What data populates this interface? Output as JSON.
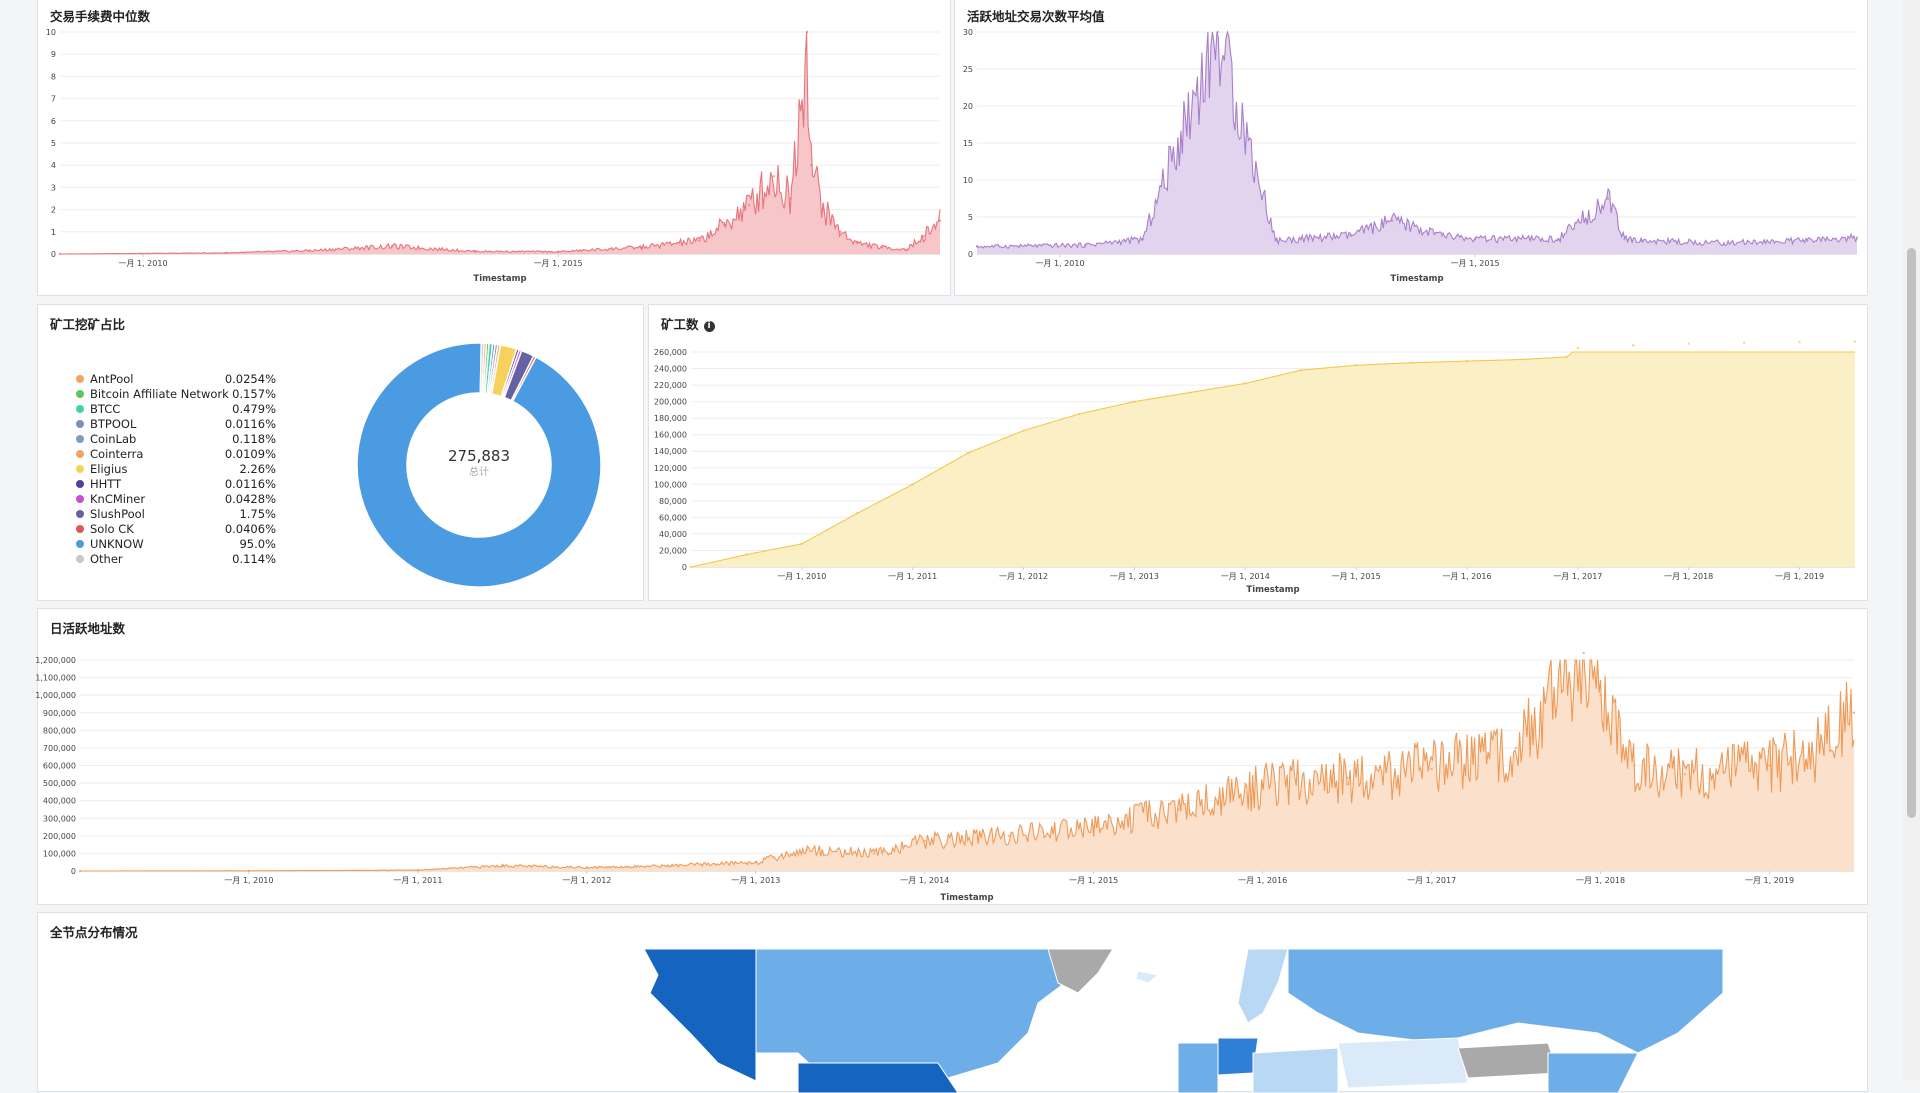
{
  "colors": {
    "fee": "#e8747c",
    "fee_fill": "#f7c6c9",
    "active_tx": "#a97fc9",
    "active_tx_fill": "#e2d4ee",
    "miners": "#f2c94c",
    "miners_fill": "#fbefc5",
    "daily": "#ef9a57",
    "daily_fill": "#fbe1cc"
  },
  "panels": {
    "fee": {
      "title": "交易手续费中位数",
      "xlabel": "Timestamp"
    },
    "active_tx": {
      "title": "活跃地址交易次数平均值",
      "xlabel": "Timestamp"
    },
    "pool": {
      "title": "矿工挖矿占比",
      "center_value": "275,883",
      "center_label": "总计"
    },
    "miners": {
      "title": "矿工数",
      "info_icon": "info-icon",
      "xlabel": "Timestamp"
    },
    "daily": {
      "title": "日活跃地址数",
      "xlabel": "Timestamp"
    },
    "nodes": {
      "title": "全节点分布情况"
    }
  },
  "chart_data": [
    {
      "id": "fee",
      "type": "area",
      "title": "交易手续费中位数",
      "xlabel": "Timestamp",
      "yticks": [
        "0",
        "1",
        "2",
        "3",
        "4",
        "5",
        "6",
        "7",
        "8",
        "9",
        "10"
      ],
      "ylim": [
        0,
        10
      ],
      "xticks": [
        {
          "label": "一月 1, 2010",
          "value": 2010.0
        },
        {
          "label": "一月 1, 2015",
          "value": 2015.0
        }
      ],
      "xlim": [
        2009.0,
        2019.6
      ],
      "x": [
        2009.0,
        2011.0,
        2012.0,
        2013.0,
        2014.0,
        2015.0,
        2016.0,
        2016.7,
        2017.0,
        2017.3,
        2017.6,
        2017.8,
        2018.0,
        2018.05,
        2018.2,
        2018.4,
        2018.6,
        2018.9,
        2019.2,
        2019.4,
        2019.6
      ],
      "values": [
        0,
        0.05,
        0.15,
        0.35,
        0.12,
        0.1,
        0.3,
        0.6,
        1.3,
        2.2,
        3.5,
        2.5,
        10.0,
        4.0,
        2.0,
        1.0,
        0.5,
        0.3,
        0.2,
        0.8,
        1.5
      ]
    },
    {
      "id": "active_tx",
      "type": "area",
      "title": "活跃地址交易次数平均值",
      "xlabel": "Timestamp",
      "yticks": [
        "0",
        "5",
        "10",
        "15",
        "20",
        "25",
        "30"
      ],
      "ylim": [
        0,
        30
      ],
      "xticks": [
        {
          "label": "一月 1, 2010",
          "value": 2010.0
        },
        {
          "label": "一月 1, 2015",
          "value": 2015.0
        }
      ],
      "xlim": [
        2009.0,
        2019.6
      ],
      "x": [
        2009.0,
        2010.3,
        2011.0,
        2011.9,
        2012.6,
        2013.5,
        2014.0,
        2014.6,
        2015.0,
        2016.0,
        2016.6,
        2016.8,
        2017.0,
        2018.0,
        2019.0,
        2019.6
      ],
      "values": [
        1,
        1.2,
        2,
        30,
        1.8,
        2.5,
        4.5,
        2.5,
        2,
        2,
        7.5,
        2,
        1.8,
        1.5,
        1.8,
        2.2
      ]
    },
    {
      "id": "miners",
      "type": "area",
      "title": "矿工数",
      "xlabel": "Timestamp",
      "yticks": [
        "0",
        "20,000",
        "40,000",
        "60,000",
        "80,000",
        "100,000",
        "120,000",
        "140,000",
        "160,000",
        "180,000",
        "200,000",
        "220,000",
        "240,000",
        "260,000"
      ],
      "ylim": [
        0,
        260000
      ],
      "xticks": [
        {
          "label": "一月 1, 2010",
          "value": 2010.0
        },
        {
          "label": "一月 1, 2011",
          "value": 2011.0
        },
        {
          "label": "一月 1, 2012",
          "value": 2012.0
        },
        {
          "label": "一月 1, 2013",
          "value": 2013.0
        },
        {
          "label": "一月 1, 2014",
          "value": 2014.0
        },
        {
          "label": "一月 1, 2015",
          "value": 2015.0
        },
        {
          "label": "一月 1, 2016",
          "value": 2016.0
        },
        {
          "label": "一月 1, 2017",
          "value": 2017.0
        },
        {
          "label": "一月 1, 2018",
          "value": 2018.0
        },
        {
          "label": "一月 1, 2019",
          "value": 2019.0
        }
      ],
      "xlim": [
        2009.0,
        2019.5
      ],
      "x": [
        2009.0,
        2009.5,
        2010.0,
        2010.5,
        2011.0,
        2011.5,
        2012.0,
        2012.5,
        2013.0,
        2013.5,
        2014.0,
        2014.5,
        2015.0,
        2015.5,
        2016.0,
        2016.5,
        2016.9,
        2017.0,
        2017.5,
        2018.0,
        2018.5,
        2019.0,
        2019.5
      ],
      "values": [
        0,
        15000,
        28000,
        65000,
        100000,
        138000,
        165000,
        185000,
        200000,
        211000,
        222000,
        238000,
        244000,
        247000,
        249000,
        251000,
        254000,
        265000,
        268000,
        270000,
        271000,
        272000,
        272500
      ]
    },
    {
      "id": "daily",
      "type": "area",
      "title": "日活跃地址数",
      "xlabel": "Timestamp",
      "yticks": [
        "0",
        "100,000",
        "200,000",
        "300,000",
        "400,000",
        "500,000",
        "600,000",
        "700,000",
        "800,000",
        "900,000",
        "1,000,000",
        "1,100,000",
        "1,200,000"
      ],
      "ylim": [
        0,
        1200000
      ],
      "xticks": [
        {
          "label": "一月 1, 2010",
          "value": 2010.0
        },
        {
          "label": "一月 1, 2011",
          "value": 2011.0
        },
        {
          "label": "一月 1, 2012",
          "value": 2012.0
        },
        {
          "label": "一月 1, 2013",
          "value": 2013.0
        },
        {
          "label": "一月 1, 2014",
          "value": 2014.0
        },
        {
          "label": "一月 1, 2015",
          "value": 2015.0
        },
        {
          "label": "一月 1, 2016",
          "value": 2016.0
        },
        {
          "label": "一月 1, 2017",
          "value": 2017.0
        },
        {
          "label": "一月 1, 2018",
          "value": 2018.0
        },
        {
          "label": "一月 1, 2019",
          "value": 2019.0
        }
      ],
      "xlim": [
        2009.0,
        2019.5
      ],
      "x": [
        2009.0,
        2010.0,
        2011.0,
        2011.5,
        2012.0,
        2012.5,
        2013.0,
        2013.3,
        2013.7,
        2014.0,
        2014.5,
        2015.0,
        2015.5,
        2016.0,
        2016.5,
        2017.0,
        2017.5,
        2017.9,
        2018.0,
        2018.2,
        2018.5,
        2019.0,
        2019.3,
        2019.5
      ],
      "values": [
        0,
        1000,
        5000,
        30000,
        20000,
        30000,
        50000,
        120000,
        100000,
        170000,
        200000,
        250000,
        350000,
        480000,
        530000,
        580000,
        700000,
        1240000,
        1000000,
        600000,
        550000,
        600000,
        700000,
        900000
      ]
    },
    {
      "id": "pool",
      "type": "pie",
      "title": "矿工挖矿占比",
      "labels": [
        "AntPool",
        "Bitcoin Affiliate Network",
        "BTCC",
        "BTPOOL",
        "CoinLab",
        "Cointerra",
        "Eligius",
        "HHTT",
        "KnCMiner",
        "SlushPool",
        "Solo CK",
        "UNKNOW",
        "Other"
      ],
      "value_labels": [
        "0.0254%",
        "0.157%",
        "0.479%",
        "0.0116%",
        "0.118%",
        "0.0109%",
        "2.26%",
        "0.0116%",
        "0.0428%",
        "1.75%",
        "0.0406%",
        "95.0%",
        "0.114%"
      ],
      "values": [
        0.0254,
        0.157,
        0.479,
        0.0116,
        0.118,
        0.0109,
        2.26,
        0.0116,
        0.0428,
        1.75,
        0.0406,
        95.0,
        0.114
      ],
      "colors": [
        "#f0a566",
        "#5cc85a",
        "#41d3a5",
        "#7f8cc0",
        "#8497c9",
        "#f0a566",
        "#f6d15c",
        "#4c3fa3",
        "#c64fd4",
        "#6462a4",
        "#e25555",
        "#4a9be2",
        "#c8c8c8"
      ],
      "legend": "left"
    }
  ],
  "map": {
    "colors": [
      "#1565c0",
      "#6daee9",
      "#b9d8f4",
      "#2f7fd6",
      "#a9a9a9",
      "#dbeaf9"
    ]
  }
}
